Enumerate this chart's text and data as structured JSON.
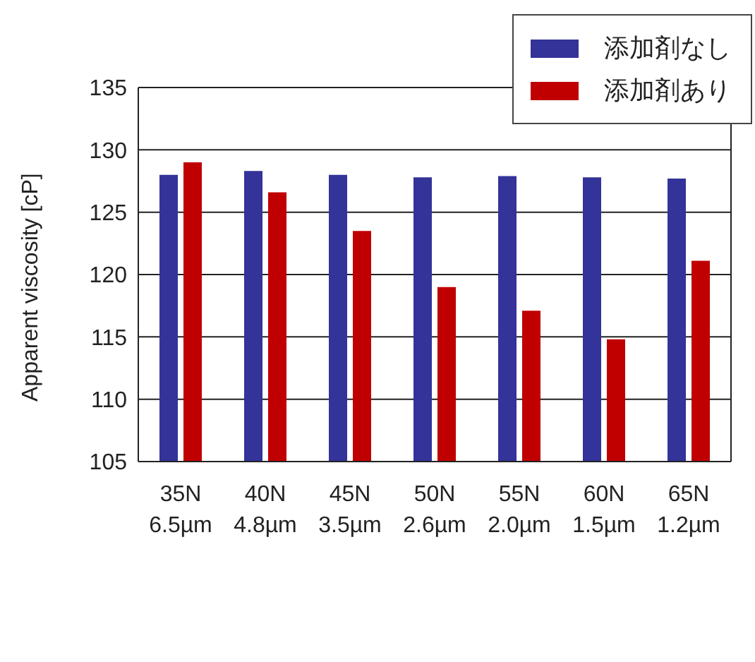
{
  "chart_data": {
    "type": "bar",
    "ylabel": "Apparent viscosity [cP]",
    "categories": [
      "35N\n6.5µm",
      "40N\n4.8µm",
      "45N\n3.5µm",
      "50N\n2.6µm",
      "55N\n2.0µm",
      "60N\n1.5µm",
      "65N\n1.2µm"
    ],
    "series": [
      {
        "name": "添加剤なし",
        "color": "#333399",
        "values": [
          128.0,
          128.3,
          128.0,
          127.8,
          127.9,
          127.8,
          127.7
        ]
      },
      {
        "name": "添加剤あり",
        "color": "#c00000",
        "values": [
          129.0,
          126.6,
          123.5,
          119.0,
          117.1,
          114.8,
          121.1
        ]
      }
    ],
    "ylim": [
      105,
      135
    ],
    "yticks": [
      105,
      110,
      115,
      120,
      125,
      130,
      135
    ],
    "grid": "y",
    "legend": "top right"
  }
}
